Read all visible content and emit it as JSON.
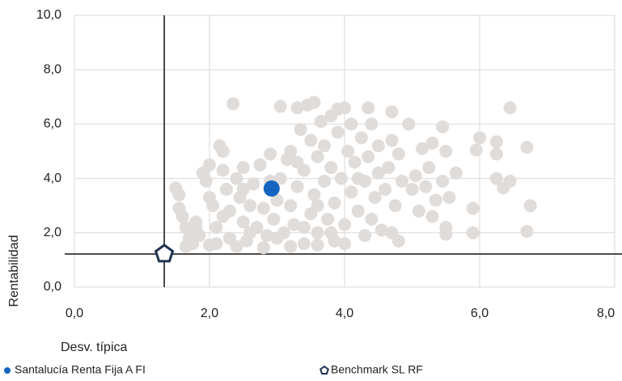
{
  "chart_data": {
    "type": "scatter",
    "xlabel": "Desv. típica",
    "ylabel": "Rentabilidad",
    "xlim": [
      0,
      8
    ],
    "ylim": [
      0,
      10
    ],
    "xticks": [
      {
        "value": 0,
        "label": "0,0"
      },
      {
        "value": 2,
        "label": "2,0"
      },
      {
        "value": 4,
        "label": "4,0"
      },
      {
        "value": 6,
        "label": "6,0"
      },
      {
        "value": 8,
        "label": "8,0"
      }
    ],
    "yticks": [
      {
        "value": 0,
        "label": "0,0"
      },
      {
        "value": 2,
        "label": "2,0"
      },
      {
        "value": 4,
        "label": "4,0"
      },
      {
        "value": 6,
        "label": "6,0"
      },
      {
        "value": 8,
        "label": "8,0"
      },
      {
        "value": 10,
        "label": "10,0"
      }
    ],
    "grid": true,
    "legend": "bottom",
    "series": [
      {
        "color": "#e0dcd9",
        "marker": "circle",
        "x": [
          1.5,
          1.55,
          1.55,
          1.6,
          1.65,
          1.7,
          1.75,
          1.8,
          1.85,
          1.9,
          1.95,
          2.0,
          2.05,
          2.1,
          2.1,
          2.15,
          2.2,
          2.2,
          2.25,
          2.3,
          2.3,
          2.35,
          2.4,
          2.45,
          2.5,
          2.5,
          2.55,
          2.6,
          2.65,
          2.7,
          2.75,
          2.8,
          2.85,
          2.9,
          2.95,
          3.0,
          3.05,
          3.05,
          3.1,
          3.15,
          3.2,
          3.2,
          3.25,
          3.3,
          3.3,
          3.35,
          3.4,
          3.4,
          3.45,
          3.5,
          3.5,
          3.55,
          3.55,
          3.6,
          3.6,
          3.65,
          3.7,
          3.7,
          3.75,
          3.8,
          3.8,
          3.85,
          3.85,
          3.9,
          3.9,
          3.95,
          4.0,
          4.0,
          4.05,
          4.1,
          4.1,
          4.15,
          4.2,
          4.25,
          4.3,
          4.3,
          4.35,
          4.35,
          4.4,
          4.4,
          4.45,
          4.5,
          4.5,
          4.55,
          4.6,
          4.65,
          4.7,
          4.7,
          4.7,
          4.75,
          4.8,
          4.8,
          4.85,
          4.95,
          5.0,
          5.05,
          5.1,
          5.15,
          5.2,
          5.25,
          5.3,
          5.3,
          5.35,
          5.45,
          5.45,
          5.5,
          5.5,
          5.5,
          5.55,
          5.65,
          5.9,
          5.9,
          5.95,
          6.0,
          6.25,
          6.25,
          6.25,
          6.35,
          6.45,
          6.45,
          6.7,
          6.7,
          6.75,
          1.65,
          2.0,
          2.4,
          2.8,
          3.2,
          3.6,
          4.0,
          1.8,
          2.2,
          2.6,
          3.0,
          3.4,
          3.8,
          2.0,
          2.5,
          3.6,
          4.2,
          3.3,
          2.9
        ],
        "y": [
          3.65,
          3.4,
          2.9,
          2.6,
          2.2,
          1.8,
          1.6,
          2.4,
          1.9,
          4.2,
          3.9,
          4.5,
          3.0,
          2.2,
          1.6,
          5.2,
          5.0,
          4.3,
          3.6,
          2.8,
          1.8,
          6.75,
          4.0,
          3.3,
          2.4,
          4.4,
          1.7,
          3.0,
          3.8,
          2.2,
          4.5,
          2.9,
          1.9,
          4.9,
          2.5,
          3.2,
          6.65,
          4.0,
          2.0,
          4.7,
          5.0,
          3.0,
          2.3,
          6.6,
          3.7,
          5.8,
          4.3,
          1.6,
          6.7,
          2.7,
          5.4,
          6.8,
          3.4,
          4.8,
          2.0,
          6.1,
          3.9,
          5.2,
          2.5,
          4.4,
          6.3,
          1.7,
          3.1,
          5.7,
          6.55,
          4.0,
          2.3,
          6.6,
          5.0,
          3.5,
          6.0,
          4.6,
          2.8,
          5.5,
          1.9,
          3.9,
          6.6,
          4.8,
          6.0,
          2.5,
          3.3,
          4.2,
          5.2,
          2.1,
          3.6,
          4.4,
          6.45,
          5.4,
          2.0,
          3.0,
          4.9,
          1.7,
          3.9,
          6.0,
          3.6,
          4.1,
          2.8,
          5.1,
          3.7,
          4.4,
          5.3,
          2.6,
          3.2,
          5.9,
          3.9,
          2.2,
          1.95,
          5.0,
          3.3,
          4.2,
          2.0,
          2.9,
          5.05,
          5.5,
          5.35,
          4.9,
          4.0,
          3.65,
          3.9,
          6.6,
          5.15,
          2.05,
          3.0,
          1.5,
          1.55,
          1.5,
          1.45,
          1.5,
          1.55,
          1.6,
          2.2,
          2.6,
          2.0,
          1.8,
          2.2,
          2.0,
          3.3,
          3.6,
          3.0,
          4.0,
          4.6,
          3.9
        ]
      },
      {
        "name": "Santalucía Renta Fija A FI",
        "color": "#1565c0",
        "marker": "circle",
        "x": [
          2.92
        ],
        "y": [
          3.63
        ]
      },
      {
        "name": "Benchmark SL RF",
        "color": "#1f3350",
        "marker": "pentagon",
        "reference_lines": true,
        "x": [
          1.33
        ],
        "y": [
          1.22
        ]
      }
    ]
  }
}
